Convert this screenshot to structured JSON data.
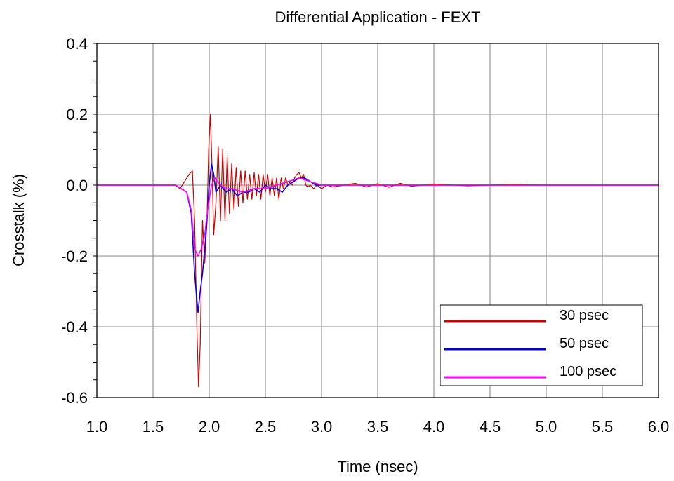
{
  "chart_data": {
    "type": "line",
    "title": "Differential Application - FEXT",
    "xlabel": "Time (nsec)",
    "ylabel": "Crosstalk (%)",
    "xlim": [
      1.0,
      6.0
    ],
    "ylim": [
      -0.6,
      0.4
    ],
    "xticks": [
      "1.0",
      "1.5",
      "2.0",
      "2.5",
      "3.0",
      "3.5",
      "4.0",
      "4.5",
      "5.0",
      "5.5",
      "6.0"
    ],
    "yticks": [
      "0.4",
      "0.2",
      "0.0",
      "-0.2",
      "-0.4",
      "-0.6"
    ],
    "grid": true,
    "legend_position": "bottom-right",
    "series": [
      {
        "name": "30 psec",
        "color": "#cc0000",
        "x": [
          1.0,
          1.7,
          1.74,
          1.78,
          1.82,
          1.85,
          1.87,
          1.89,
          1.905,
          1.92,
          1.94,
          1.96,
          1.98,
          1.995,
          2.01,
          2.025,
          2.04,
          2.06,
          2.08,
          2.1,
          2.12,
          2.14,
          2.16,
          2.18,
          2.2,
          2.22,
          2.24,
          2.26,
          2.28,
          2.3,
          2.32,
          2.34,
          2.36,
          2.38,
          2.4,
          2.42,
          2.44,
          2.46,
          2.48,
          2.5,
          2.52,
          2.54,
          2.56,
          2.58,
          2.6,
          2.62,
          2.64,
          2.66,
          2.68,
          2.7,
          2.72,
          2.74,
          2.76,
          2.78,
          2.8,
          2.82,
          2.84,
          2.86,
          2.88,
          2.9,
          2.93,
          2.96,
          3.0,
          3.05,
          3.1,
          3.2,
          3.3,
          3.4,
          3.5,
          3.6,
          3.7,
          3.8,
          4.0,
          4.3,
          4.7,
          5.0,
          6.0
        ],
        "y": [
          0.0,
          0.0,
          -0.01,
          0.01,
          0.03,
          0.04,
          -0.1,
          -0.4,
          -0.57,
          -0.45,
          -0.1,
          -0.22,
          -0.1,
          0.1,
          0.2,
          0.05,
          -0.14,
          -0.05,
          0.11,
          -0.1,
          0.1,
          -0.1,
          0.08,
          -0.08,
          0.06,
          -0.07,
          0.05,
          -0.06,
          0.04,
          -0.05,
          0.04,
          -0.04,
          0.03,
          -0.04,
          0.035,
          -0.03,
          0.03,
          -0.04,
          0.03,
          -0.02,
          0.03,
          -0.03,
          0.02,
          -0.03,
          0.02,
          -0.04,
          0.02,
          -0.01,
          0.02,
          0.0,
          0.01,
          0.0,
          0.02,
          0.03,
          0.035,
          0.02,
          0.03,
          0.0,
          -0.005,
          0.0,
          -0.01,
          0.0,
          -0.01,
          0.0,
          -0.005,
          0.0,
          0.005,
          -0.005,
          0.004,
          -0.006,
          0.005,
          -0.003,
          0.003,
          -0.002,
          0.002,
          0.0,
          0.0
        ]
      },
      {
        "name": "50 psec",
        "color": "#0000dd",
        "x": [
          1.0,
          1.7,
          1.75,
          1.8,
          1.84,
          1.87,
          1.9,
          1.92,
          1.94,
          1.96,
          1.98,
          2.0,
          2.02,
          2.04,
          2.06,
          2.1,
          2.15,
          2.2,
          2.25,
          2.3,
          2.35,
          2.4,
          2.45,
          2.5,
          2.55,
          2.6,
          2.65,
          2.7,
          2.75,
          2.8,
          2.85,
          2.9,
          2.95,
          3.0,
          3.1,
          3.2,
          3.4,
          3.7,
          4.0,
          6.0
        ],
        "y": [
          0.0,
          0.0,
          -0.01,
          -0.02,
          -0.08,
          -0.25,
          -0.36,
          -0.3,
          -0.25,
          -0.18,
          -0.1,
          0.0,
          0.06,
          0.03,
          -0.02,
          0.0,
          -0.02,
          -0.01,
          -0.03,
          -0.02,
          -0.02,
          -0.01,
          -0.02,
          0.0,
          -0.01,
          -0.01,
          -0.02,
          0.0,
          0.01,
          0.02,
          0.02,
          0.01,
          0.0,
          0.0,
          0.0,
          0.0,
          0.0,
          0.0,
          0.0,
          0.0
        ]
      },
      {
        "name": "100 psec",
        "color": "#ff00ff",
        "x": [
          1.0,
          1.7,
          1.75,
          1.8,
          1.84,
          1.87,
          1.9,
          1.93,
          1.96,
          1.99,
          2.02,
          2.05,
          2.1,
          2.15,
          2.2,
          2.3,
          2.4,
          2.5,
          2.6,
          2.7,
          2.8,
          2.9,
          3.0,
          3.2,
          4.0,
          6.0
        ],
        "y": [
          0.0,
          0.0,
          -0.01,
          -0.02,
          -0.07,
          -0.18,
          -0.2,
          -0.18,
          -0.14,
          -0.06,
          0.0,
          0.02,
          0.0,
          -0.01,
          -0.01,
          -0.02,
          -0.01,
          -0.01,
          0.0,
          0.01,
          0.02,
          0.01,
          0.0,
          0.0,
          0.0,
          0.0
        ]
      }
    ]
  }
}
